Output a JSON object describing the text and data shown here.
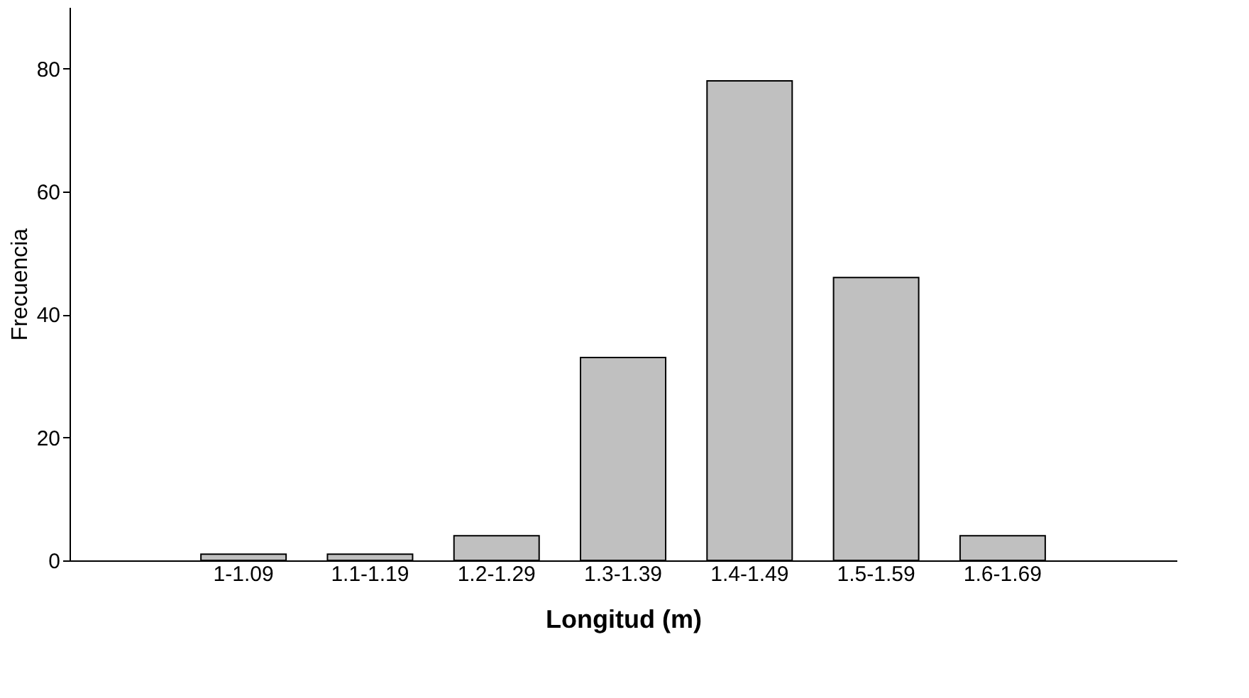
{
  "chart_data": {
    "type": "bar",
    "xlabel": "Longitud (m)",
    "ylabel": "Frecuencia",
    "categories": [
      "1-1.09",
      "1.1-1.19",
      "1.2-1.29",
      "1.3-1.39",
      "1.4-1.49",
      "1.5-1.59",
      "1.6-1.69"
    ],
    "values": [
      1,
      1,
      4,
      33,
      78,
      46,
      4
    ],
    "color": "#c0c0c0",
    "ylim": [
      0,
      90
    ],
    "yticks": [
      0,
      20,
      40,
      60,
      80
    ],
    "grid": false
  }
}
